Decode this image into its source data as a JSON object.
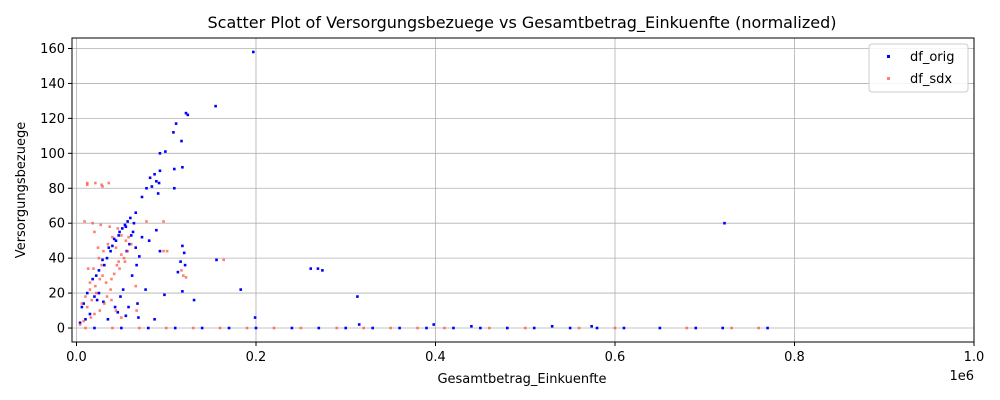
{
  "chart_data": {
    "type": "scatter",
    "title": "Scatter Plot of Versorgungsbezuege vs Gesamtbetrag_Einkuenfte (normalized)",
    "xlabel": "Gesamtbetrag_Einkuenfte",
    "ylabel": "Versorgungsbezuege",
    "x_multiplier": "1e6",
    "xlim": [
      -0.005,
      1.0
    ],
    "ylim": [
      -8,
      166
    ],
    "x_ticks": [
      0.0,
      0.2,
      0.4,
      0.6,
      0.8,
      1.0
    ],
    "x_tick_labels": [
      "0.0",
      "0.2",
      "0.4",
      "0.6",
      "0.8",
      "1.0"
    ],
    "y_ticks": [
      0,
      20,
      40,
      60,
      80,
      100,
      120,
      140,
      160
    ],
    "y_tick_labels": [
      "0",
      "20",
      "40",
      "60",
      "80",
      "100",
      "120",
      "140",
      "160"
    ],
    "grid": true,
    "legend_position": "top-right",
    "colors": {
      "df_orig": "#0000ff",
      "df_sdx": "#ff4a3a"
    },
    "series": [
      {
        "name": "df_orig",
        "points": [
          [
            0.197,
            158
          ],
          [
            0.155,
            127
          ],
          [
            0.122,
            123
          ],
          [
            0.124,
            122
          ],
          [
            0.111,
            117
          ],
          [
            0.108,
            112
          ],
          [
            0.117,
            107
          ],
          [
            0.099,
            101
          ],
          [
            0.093,
            100
          ],
          [
            0.118,
            92
          ],
          [
            0.109,
            91
          ],
          [
            0.093,
            90
          ],
          [
            0.087,
            88
          ],
          [
            0.082,
            86
          ],
          [
            0.089,
            84
          ],
          [
            0.092,
            83
          ],
          [
            0.084,
            81
          ],
          [
            0.078,
            80
          ],
          [
            0.109,
            80
          ],
          [
            0.091,
            77
          ],
          [
            0.073,
            75
          ],
          [
            0.066,
            66
          ],
          [
            0.06,
            63
          ],
          [
            0.057,
            61
          ],
          [
            0.055,
            58
          ],
          [
            0.048,
            55
          ],
          [
            0.042,
            51
          ],
          [
            0.036,
            46
          ],
          [
            0.029,
            39
          ],
          [
            0.025,
            33
          ],
          [
            0.018,
            28
          ],
          [
            0.012,
            20
          ],
          [
            0.006,
            12
          ],
          [
            0.051,
            57
          ],
          [
            0.054,
            59
          ],
          [
            0.047,
            53
          ],
          [
            0.044,
            50
          ],
          [
            0.04,
            47
          ],
          [
            0.038,
            44
          ],
          [
            0.034,
            40
          ],
          [
            0.031,
            36
          ],
          [
            0.022,
            30
          ],
          [
            0.064,
            60
          ],
          [
            0.063,
            55
          ],
          [
            0.061,
            53
          ],
          [
            0.059,
            48
          ],
          [
            0.056,
            44
          ],
          [
            0.066,
            46
          ],
          [
            0.07,
            41
          ],
          [
            0.073,
            52
          ],
          [
            0.081,
            50
          ],
          [
            0.089,
            56
          ],
          [
            0.093,
            44
          ],
          [
            0.118,
            47
          ],
          [
            0.12,
            43
          ],
          [
            0.116,
            38
          ],
          [
            0.156,
            39
          ],
          [
            0.121,
            36
          ],
          [
            0.113,
            32
          ],
          [
            0.261,
            34
          ],
          [
            0.269,
            34
          ],
          [
            0.274,
            33
          ],
          [
            0.183,
            22
          ],
          [
            0.118,
            21
          ],
          [
            0.313,
            18
          ],
          [
            0.131,
            16
          ],
          [
            0.098,
            19
          ],
          [
            0.062,
            30
          ],
          [
            0.052,
            22
          ],
          [
            0.049,
            18
          ],
          [
            0.077,
            22
          ],
          [
            0.067,
            36
          ],
          [
            0.058,
            12
          ],
          [
            0.046,
            9
          ],
          [
            0.069,
            6
          ],
          [
            0.087,
            5
          ],
          [
            0.199,
            6
          ],
          [
            0.035,
            5
          ],
          [
            0.02,
            18
          ],
          [
            0.03,
            15
          ],
          [
            0.015,
            8
          ],
          [
            0.01,
            5
          ],
          [
            0.004,
            3
          ],
          [
            0.008,
            14
          ],
          [
            0.025,
            20
          ],
          [
            0.043,
            12
          ],
          [
            0.055,
            7
          ],
          [
            0.068,
            14
          ],
          [
            0.722,
            60
          ],
          [
            0.023,
            16
          ],
          [
            0.02,
            0
          ],
          [
            0.05,
            0
          ],
          [
            0.08,
            0
          ],
          [
            0.11,
            0
          ],
          [
            0.14,
            0
          ],
          [
            0.17,
            0
          ],
          [
            0.2,
            0
          ],
          [
            0.24,
            0
          ],
          [
            0.27,
            0
          ],
          [
            0.3,
            0
          ],
          [
            0.33,
            0
          ],
          [
            0.36,
            0
          ],
          [
            0.39,
            0
          ],
          [
            0.42,
            0
          ],
          [
            0.45,
            0
          ],
          [
            0.48,
            0
          ],
          [
            0.51,
            0
          ],
          [
            0.55,
            0
          ],
          [
            0.58,
            0
          ],
          [
            0.61,
            0
          ],
          [
            0.65,
            0
          ],
          [
            0.69,
            0
          ],
          [
            0.72,
            0
          ],
          [
            0.77,
            0
          ],
          [
            0.398,
            2
          ],
          [
            0.44,
            1
          ],
          [
            0.53,
            1
          ],
          [
            0.574,
            1
          ],
          [
            0.315,
            2
          ]
        ]
      },
      {
        "name": "df_sdx",
        "points": [
          [
            0.012,
            83
          ],
          [
            0.012,
            82
          ],
          [
            0.021,
            83
          ],
          [
            0.028,
            82
          ],
          [
            0.029,
            81
          ],
          [
            0.036,
            83
          ],
          [
            0.009,
            61
          ],
          [
            0.018,
            60
          ],
          [
            0.027,
            59
          ],
          [
            0.037,
            58
          ],
          [
            0.046,
            57
          ],
          [
            0.04,
            52
          ],
          [
            0.035,
            48
          ],
          [
            0.03,
            44
          ],
          [
            0.025,
            40
          ],
          [
            0.019,
            34
          ],
          [
            0.013,
            34
          ],
          [
            0.026,
            28
          ],
          [
            0.021,
            24
          ],
          [
            0.015,
            22
          ],
          [
            0.01,
            18
          ],
          [
            0.006,
            14
          ],
          [
            0.044,
            46
          ],
          [
            0.05,
            42
          ],
          [
            0.054,
            38
          ],
          [
            0.048,
            34
          ],
          [
            0.042,
            31
          ],
          [
            0.039,
            28
          ],
          [
            0.033,
            26
          ],
          [
            0.029,
            30
          ],
          [
            0.022,
            20
          ],
          [
            0.017,
            16
          ],
          [
            0.012,
            12
          ],
          [
            0.055,
            50
          ],
          [
            0.05,
            53
          ],
          [
            0.047,
            38
          ],
          [
            0.058,
            52
          ],
          [
            0.061,
            48
          ],
          [
            0.057,
            44
          ],
          [
            0.053,
            40
          ],
          [
            0.045,
            36
          ],
          [
            0.038,
            22
          ],
          [
            0.034,
            18
          ],
          [
            0.031,
            14
          ],
          [
            0.026,
            10
          ],
          [
            0.02,
            8
          ],
          [
            0.016,
            6
          ],
          [
            0.008,
            4
          ],
          [
            0.004,
            2
          ],
          [
            0.097,
            61
          ],
          [
            0.097,
            44
          ],
          [
            0.101,
            44
          ],
          [
            0.119,
            30
          ],
          [
            0.122,
            29
          ],
          [
            0.164,
            39
          ],
          [
            0.117,
            33
          ],
          [
            0.078,
            61
          ],
          [
            0.066,
            24
          ],
          [
            0.067,
            10
          ],
          [
            0.02,
            55
          ],
          [
            0.024,
            46
          ],
          [
            0.028,
            36
          ],
          [
            0.015,
            26
          ],
          [
            0.039,
            16
          ],
          [
            0.044,
            10
          ],
          [
            0.05,
            6
          ],
          [
            0.01,
            0
          ],
          [
            0.04,
            0
          ],
          [
            0.07,
            0
          ],
          [
            0.1,
            0
          ],
          [
            0.13,
            0
          ],
          [
            0.16,
            0
          ],
          [
            0.19,
            0
          ],
          [
            0.22,
            0
          ],
          [
            0.25,
            0
          ],
          [
            0.29,
            0
          ],
          [
            0.32,
            0
          ],
          [
            0.35,
            0
          ],
          [
            0.38,
            0
          ],
          [
            0.41,
            0
          ],
          [
            0.46,
            0
          ],
          [
            0.5,
            0
          ],
          [
            0.56,
            0
          ],
          [
            0.6,
            0
          ],
          [
            0.68,
            0
          ],
          [
            0.73,
            0
          ],
          [
            0.76,
            0
          ]
        ]
      }
    ]
  }
}
